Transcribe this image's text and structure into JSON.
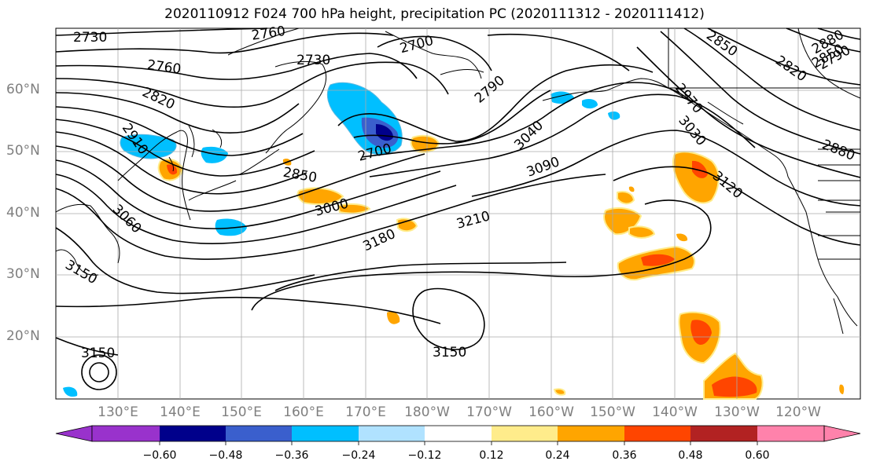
{
  "title": "2020110912 F024 700 hPa height, precipitation PC (2020111312 - 2020111412)",
  "latitude_labels": [
    "60°N",
    "50°N",
    "40°N",
    "30°N",
    "20°N"
  ],
  "longitude_labels": [
    "130°E",
    "140°E",
    "150°E",
    "160°E",
    "170°E",
    "180°W",
    "170°W",
    "160°W",
    "150°W",
    "140°W",
    "130°W",
    "120°W"
  ],
  "contour_labels": [
    "2730",
    "2760",
    "2700",
    "2730",
    "2760",
    "2820",
    "2790",
    "2850",
    "2880",
    "2850",
    "2820",
    "2790",
    "2910",
    "2700",
    "2850",
    "3000",
    "3060",
    "3180",
    "3210",
    "3090",
    "3040",
    "2970",
    "3030",
    "3120",
    "2880",
    "3150",
    "3150",
    "3150"
  ],
  "colorbar": {
    "tick_labels": [
      "−0.60",
      "−0.48",
      "−0.36",
      "−0.24",
      "−0.12",
      "0.12",
      "0.24",
      "0.36",
      "0.48",
      "0.60"
    ],
    "colors": [
      "#9932cc",
      "#00008b",
      "#3a5fcd",
      "#00bfff",
      "#b0e2ff",
      "#ffffff",
      "#ffec8b",
      "#ffa500",
      "#ff4500",
      "#b22222",
      "#ff82ab"
    ]
  }
}
